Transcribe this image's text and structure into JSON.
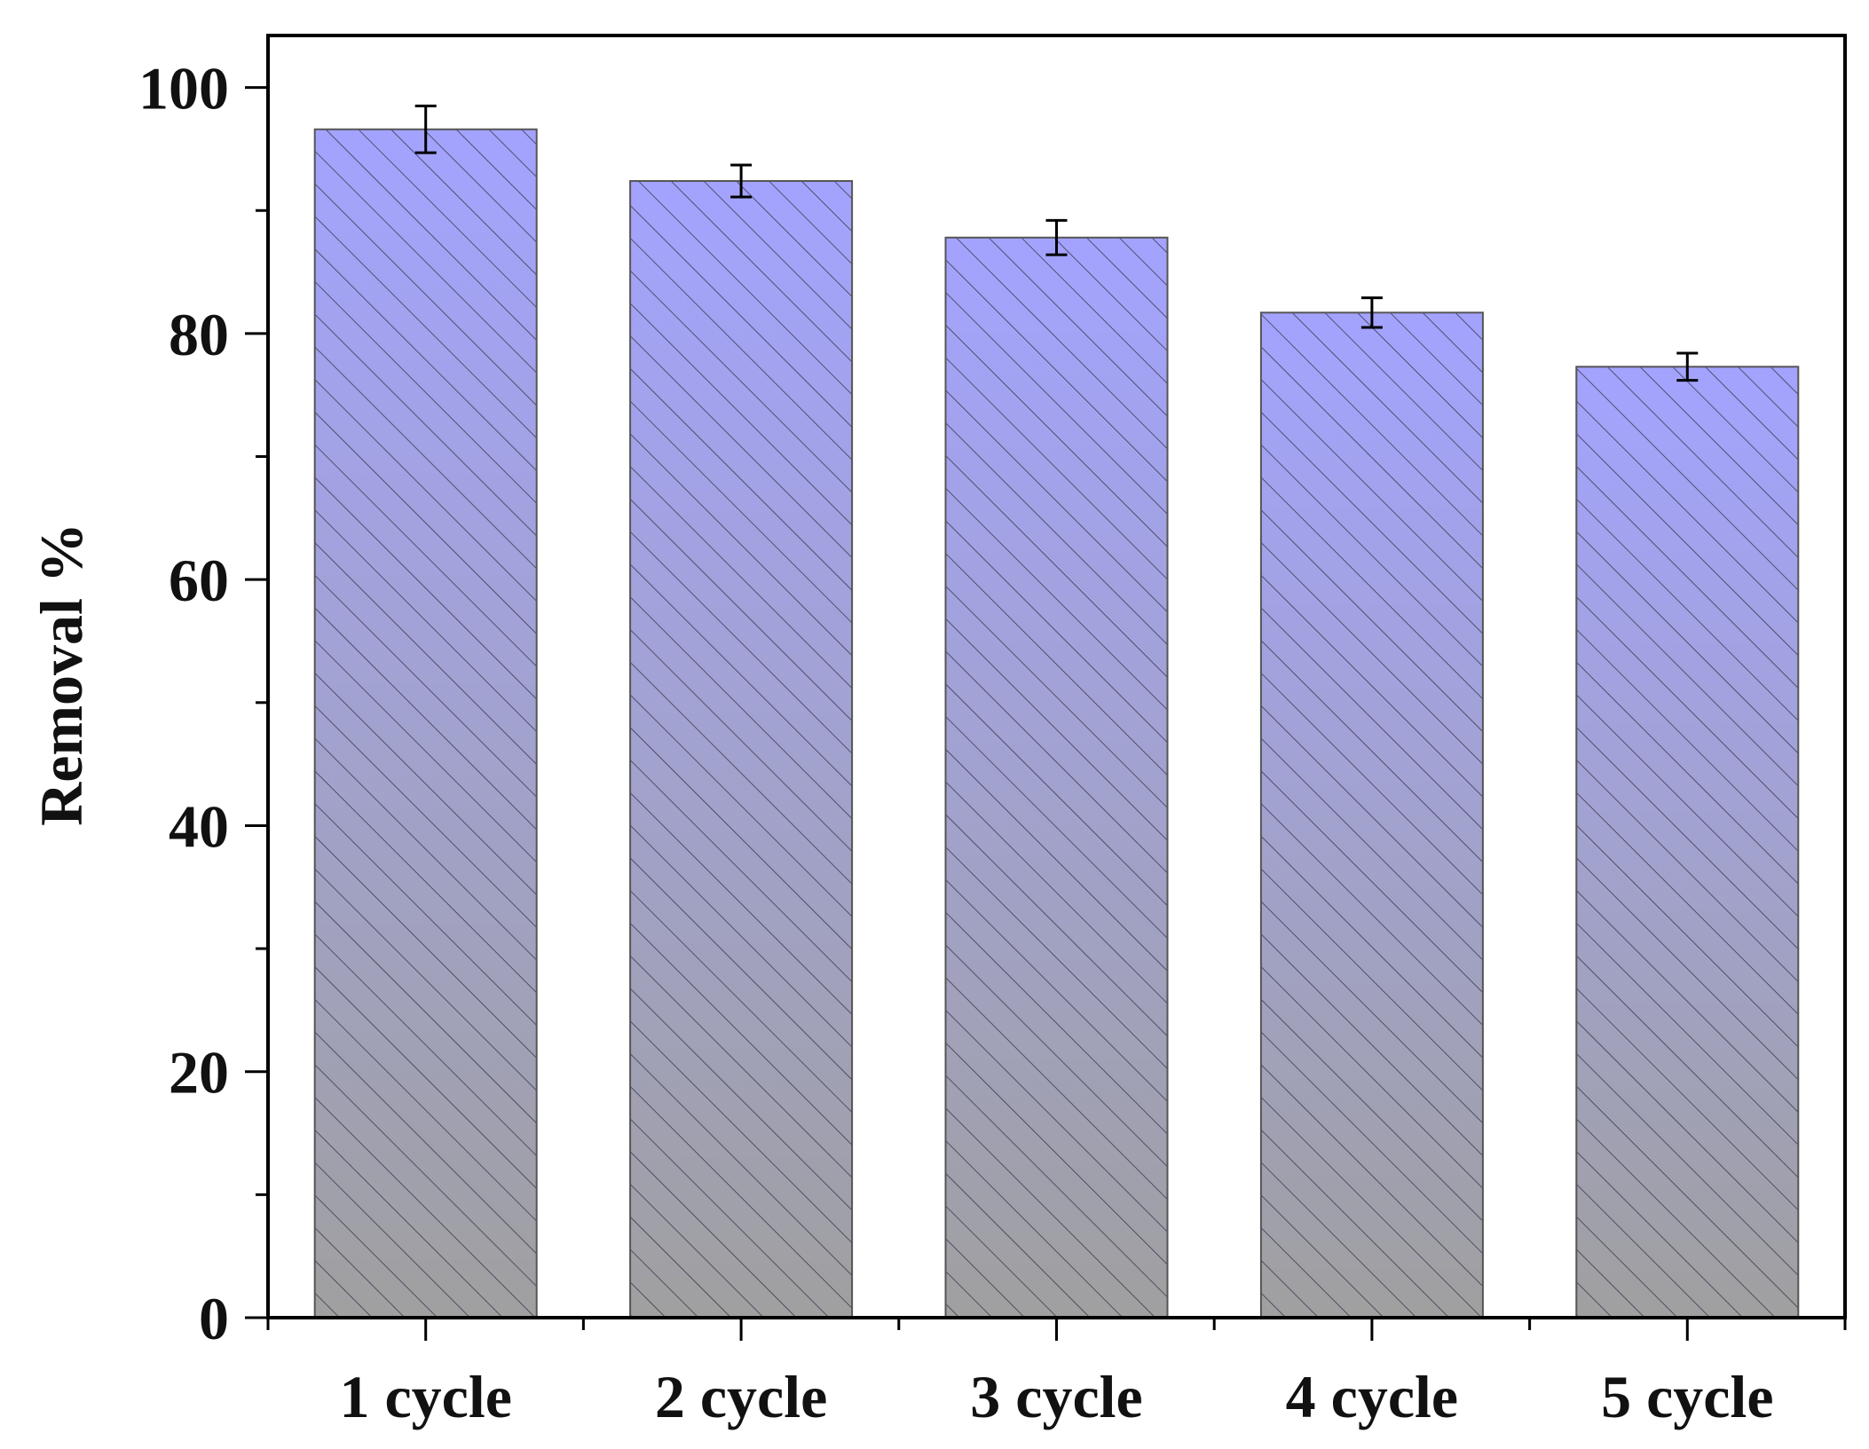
{
  "chart_data": {
    "type": "bar",
    "title": "",
    "xlabel": "",
    "ylabel": "Removal %",
    "categories": [
      "1 cycle",
      "2 cycle",
      "3 cycle",
      "4 cycle",
      "5 cycle"
    ],
    "values": [
      96.6,
      92.4,
      87.8,
      81.7,
      77.3
    ],
    "errors": [
      1.9,
      1.3,
      1.4,
      1.2,
      1.1
    ],
    "ylim": [
      0,
      104
    ],
    "yticks": [
      0,
      20,
      40,
      60,
      80,
      100
    ],
    "yminor_ticks": [
      10,
      30,
      50,
      70,
      90
    ],
    "grid": false,
    "legend": "none",
    "bar_fill_top": "#a3a3ff",
    "bar_fill_bottom": "#a0a0a0",
    "bar_pattern": "diagonal-hatch"
  }
}
